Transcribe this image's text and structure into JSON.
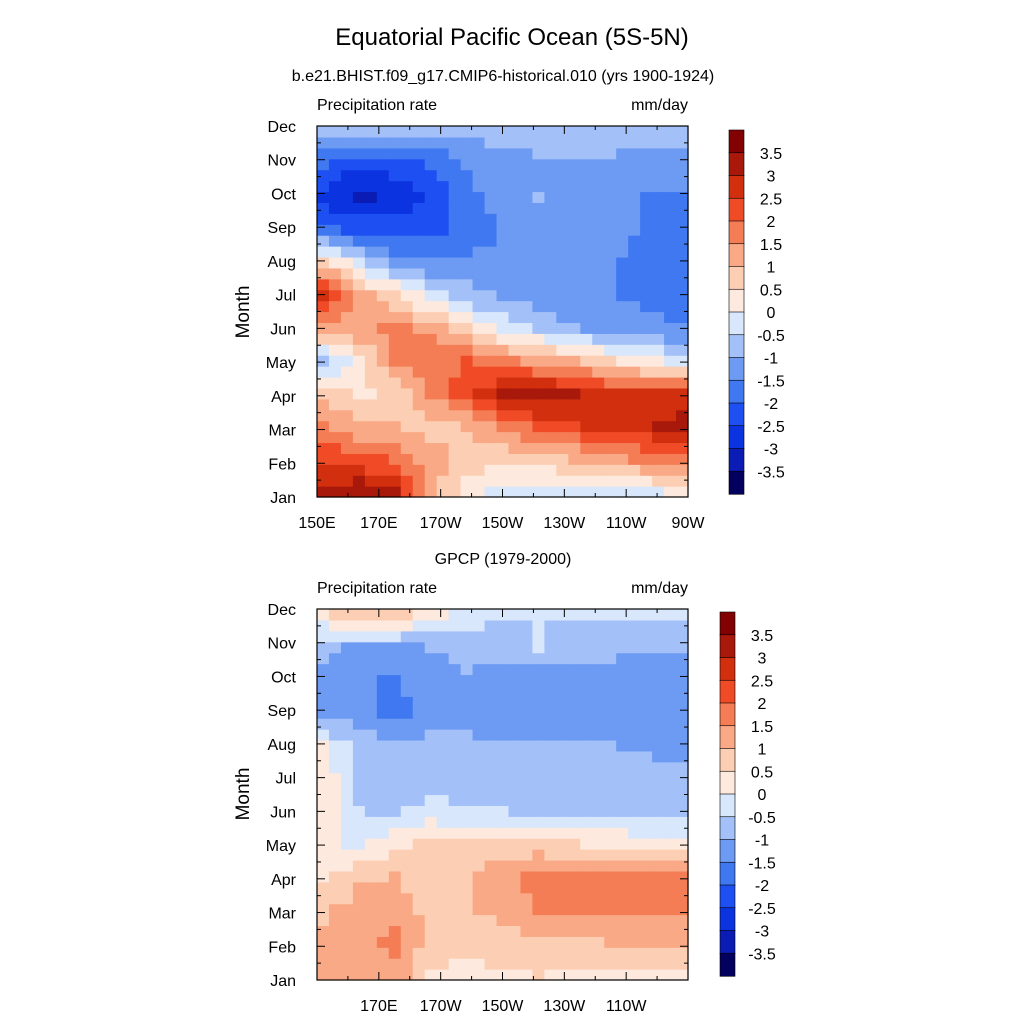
{
  "figure": {
    "title": "Equatorial Pacific Ocean (5S-5N)"
  },
  "chart_data": [
    {
      "type": "heatmap",
      "subtitle": "b.e21.BHIST.f09_g17.CMIP6-historical.010 (yrs 1900-1924)",
      "left_label": "Precipitation rate",
      "right_label": "mm/day",
      "ylabel": "Month",
      "xlabel": "",
      "x_ticks": [
        "150E",
        "170E",
        "170W",
        "150W",
        "130W",
        "110W",
        "90W"
      ],
      "y_ticks": [
        "Jan",
        "Feb",
        "Mar",
        "Apr",
        "May",
        "Jun",
        "Jul",
        "Aug",
        "Sep",
        "Oct",
        "Nov",
        "Dec"
      ],
      "xlim": [
        "150E",
        "90W"
      ],
      "colorbar_levels": [
        "3.5",
        "3",
        "2.5",
        "2",
        "1.5",
        "1",
        "0.5",
        "0",
        "-0.5",
        "-1",
        "-1.5",
        "-2",
        "-2.5",
        "-3",
        "-3.5"
      ],
      "grid": [
        [
          3.2,
          3.4,
          3.0,
          1.2,
          0.2,
          -0.2,
          -0.3,
          -0.4,
          -0.2,
          -0.1,
          0.1
        ],
        [
          2.4,
          2.2,
          1.9,
          1.2,
          0.8,
          0.7,
          0.8,
          1.0,
          1.3,
          1.6,
          1.8
        ],
        [
          1.6,
          1.1,
          1.0,
          0.8,
          1.0,
          1.5,
          2.1,
          2.4,
          2.7,
          2.9,
          3.2
        ],
        [
          0.8,
          0.4,
          0.6,
          1.5,
          2.3,
          3.0,
          3.3,
          3.0,
          2.7,
          2.5,
          2.8
        ],
        [
          -0.7,
          0.3,
          1.6,
          1.9,
          2.0,
          1.7,
          1.3,
          1.0,
          0.5,
          0.1,
          -0.2
        ],
        [
          1.1,
          1.4,
          1.6,
          1.3,
          0.5,
          -0.2,
          -0.6,
          -1.0,
          -1.2,
          -1.4,
          -1.5
        ],
        [
          2.6,
          1.3,
          0.6,
          -0.3,
          -0.8,
          -1.1,
          -1.3,
          -1.4,
          -1.5,
          -1.6,
          -1.7
        ],
        [
          0.9,
          -0.4,
          -1.2,
          -1.4,
          -1.4,
          -1.3,
          -1.4,
          -1.4,
          -1.5,
          -1.6,
          -1.7
        ],
        [
          -1.9,
          -2.1,
          -2.3,
          -2.2,
          -1.8,
          -1.5,
          -1.4,
          -1.3,
          -1.3,
          -1.6,
          -1.7
        ],
        [
          -2.6,
          -3.2,
          -2.9,
          -2.4,
          -1.7,
          -1.2,
          -1.0,
          -1.1,
          -1.3,
          -1.6,
          -1.6
        ],
        [
          -2.0,
          -2.4,
          -2.2,
          -2.0,
          -1.5,
          -1.2,
          -1.1,
          -1.1,
          -1.1,
          -1.2,
          -1.3
        ],
        [
          -0.8,
          -0.9,
          -0.9,
          -0.9,
          -0.9,
          -0.8,
          -0.8,
          -0.8,
          -0.8,
          -0.8,
          -0.8
        ]
      ]
    },
    {
      "type": "heatmap",
      "subtitle": "GPCP (1979-2000)",
      "left_label": "Precipitation rate",
      "right_label": "mm/day",
      "ylabel": "Month",
      "xlabel": "",
      "x_ticks": [
        "170E",
        "170W",
        "150W",
        "130W",
        "110W"
      ],
      "y_ticks": [
        "Jan",
        "Feb",
        "Mar",
        "Apr",
        "May",
        "Jun",
        "Jul",
        "Aug",
        "Sep",
        "Oct",
        "Nov",
        "Dec"
      ],
      "xlim": [
        "150E",
        "90W"
      ],
      "colorbar_levels": [
        "3.5",
        "3",
        "2.5",
        "2",
        "1.5",
        "1",
        "0.5",
        "0",
        "-0.5",
        "-1",
        "-1.5",
        "-2",
        "-2.5",
        "-3",
        "-3.5"
      ],
      "grid": [
        [
          1.2,
          1.4,
          1.4,
          0.4,
          0.3,
          0.4,
          0.5,
          0.3,
          0.3,
          0.3,
          0.4
        ],
        [
          1.1,
          1.4,
          1.6,
          0.8,
          0.7,
          0.8,
          0.9,
          0.9,
          1.0,
          1.1,
          1.2
        ],
        [
          0.9,
          1.2,
          1.3,
          0.8,
          0.9,
          1.2,
          1.5,
          1.6,
          1.7,
          1.6,
          1.6
        ],
        [
          0.3,
          0.9,
          1.0,
          0.7,
          0.9,
          1.3,
          1.8,
          1.9,
          1.8,
          1.8,
          1.6
        ],
        [
          0.2,
          -0.2,
          0.4,
          0.6,
          0.7,
          0.7,
          0.6,
          0.5,
          0.4,
          0.3,
          0.3
        ],
        [
          0.3,
          -0.5,
          -0.6,
          -0.3,
          -0.4,
          -0.5,
          -0.6,
          -0.7,
          -0.7,
          -0.8,
          -0.8
        ],
        [
          0.3,
          -0.6,
          -0.7,
          -0.8,
          -0.8,
          -0.8,
          -0.8,
          -0.8,
          -0.8,
          -0.8,
          -0.9
        ],
        [
          0.1,
          -0.7,
          -0.9,
          -0.9,
          -0.9,
          -0.9,
          -0.9,
          -0.9,
          -1.0,
          -1.1,
          -1.1
        ],
        [
          -1.3,
          -1.2,
          -1.7,
          -1.2,
          -1.2,
          -1.3,
          -1.3,
          -1.3,
          -1.2,
          -1.3,
          -1.2
        ],
        [
          -1.1,
          -1.4,
          -1.6,
          -1.2,
          -1.1,
          -1.3,
          -1.3,
          -1.2,
          -1.2,
          -1.2,
          -1.2
        ],
        [
          -0.9,
          -1.1,
          -1.1,
          -1.0,
          -0.8,
          -0.6,
          -0.5,
          -0.9,
          -0.9,
          -1.0,
          -1.0
        ],
        [
          0.4,
          0.9,
          0.7,
          0.3,
          -0.3,
          -0.5,
          -0.5,
          -0.5,
          -0.5,
          -0.5,
          -0.5
        ]
      ]
    }
  ],
  "colormap": [
    "#03005e",
    "#0a1cb4",
    "#0b34e0",
    "#1d4ff2",
    "#3f78f0",
    "#6d9af3",
    "#a3c1f8",
    "#d8e7fb",
    "#fde9dd",
    "#fccfb5",
    "#f9a986",
    "#f47d55",
    "#f04b27",
    "#d12f0e",
    "#a8180b",
    "#820203"
  ]
}
